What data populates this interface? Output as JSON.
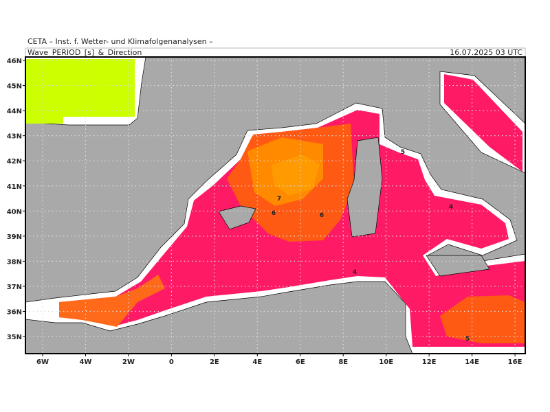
{
  "header": {
    "institute": "CETA – Inst. f. Wetter- und Klimafolgenanalysen –",
    "product": "Wave_PERIOD_[s]_&_Direction",
    "valid_time": "16.07.2025 03 UTC"
  },
  "map": {
    "lat_ticks": [
      {
        "value": 46,
        "label": "46N"
      },
      {
        "value": 45,
        "label": "45N"
      },
      {
        "value": 44,
        "label": "44N"
      },
      {
        "value": 43,
        "label": "43N"
      },
      {
        "value": 42,
        "label": "42N"
      },
      {
        "value": 41,
        "label": "41N"
      },
      {
        "value": 40,
        "label": "40N"
      },
      {
        "value": 39,
        "label": "39N"
      },
      {
        "value": 38,
        "label": "38N"
      },
      {
        "value": 37,
        "label": "37N"
      },
      {
        "value": 36,
        "label": "36N"
      },
      {
        "value": 35,
        "label": "35N"
      }
    ],
    "lon_ticks": [
      {
        "value": -6,
        "label": "6W"
      },
      {
        "value": -4,
        "label": "4W"
      },
      {
        "value": -2,
        "label": "2W"
      },
      {
        "value": 0,
        "label": "0"
      },
      {
        "value": 2,
        "label": "2E"
      },
      {
        "value": 4,
        "label": "4E"
      },
      {
        "value": 6,
        "label": "6E"
      },
      {
        "value": 8,
        "label": "8E"
      },
      {
        "value": 10,
        "label": "10E"
      },
      {
        "value": 12,
        "label": "12E"
      },
      {
        "value": 14,
        "label": "14E"
      },
      {
        "value": 16,
        "label": "16E"
      }
    ],
    "contour_labels": [
      "7",
      "6",
      "6",
      "4",
      "4",
      "5",
      "5"
    ]
  }
}
